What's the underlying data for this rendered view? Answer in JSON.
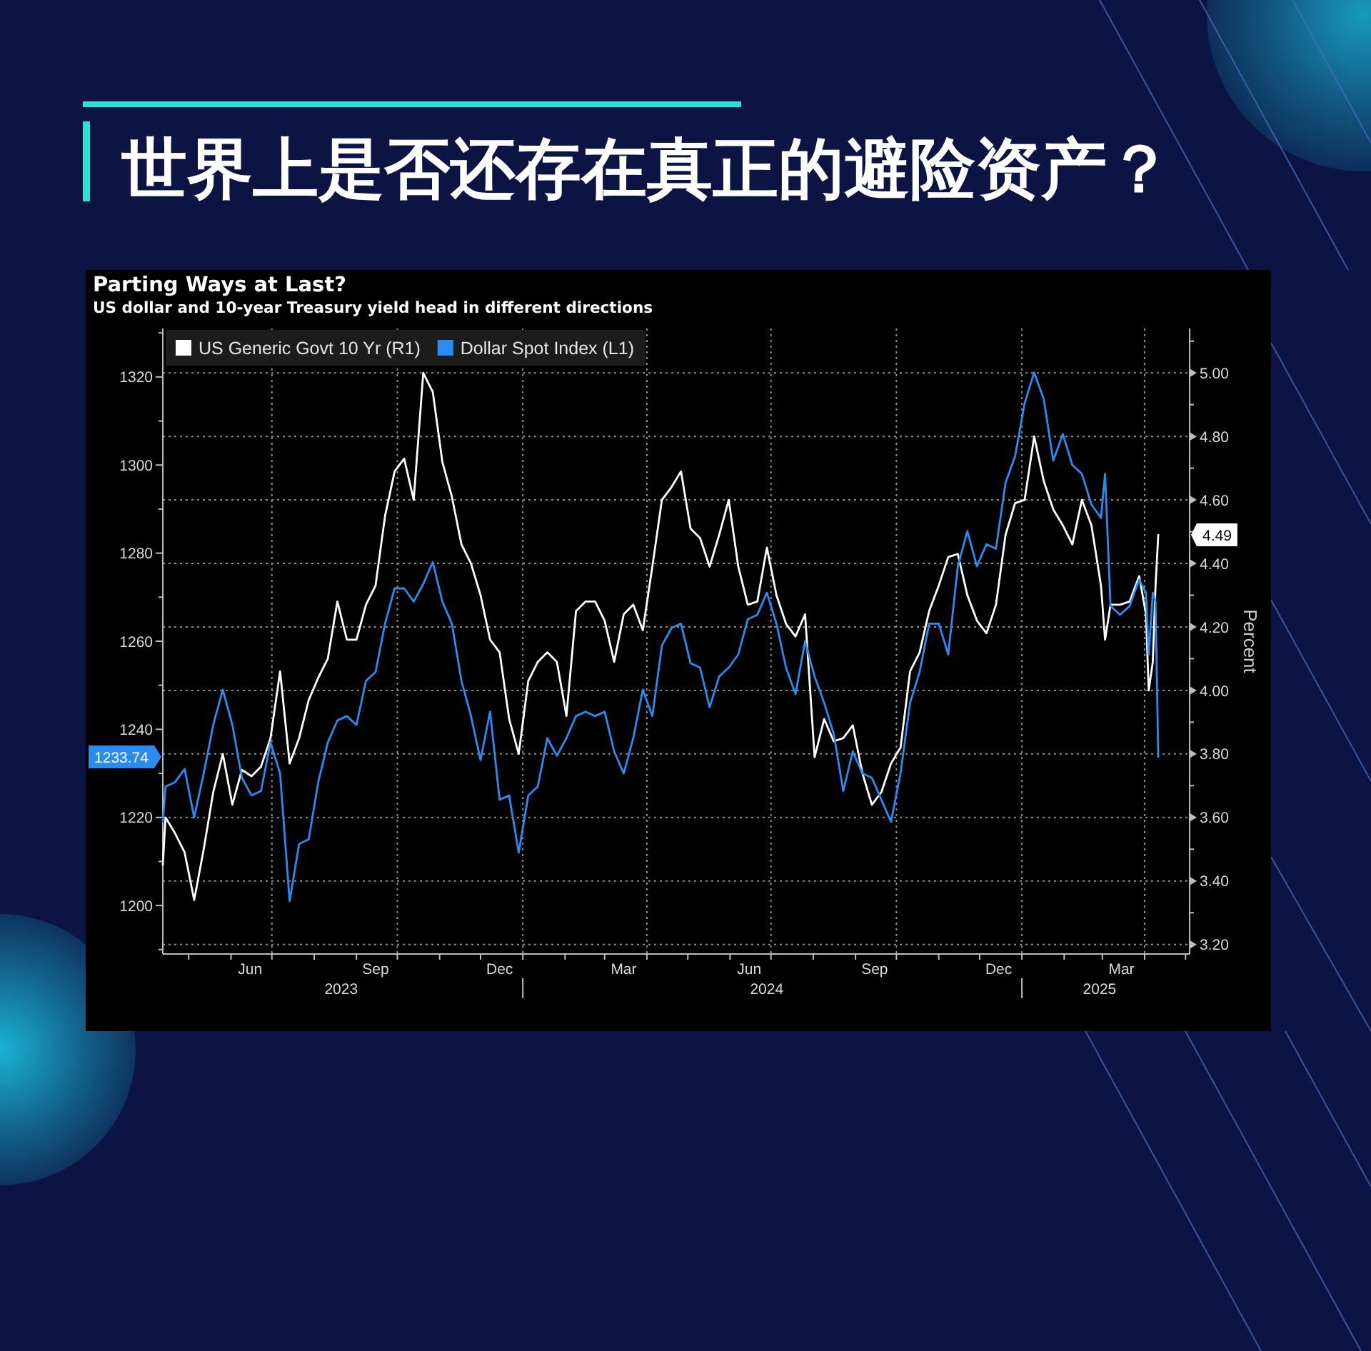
{
  "chart_data": {
    "type": "line",
    "title": "Parting Ways at Last?",
    "subtitle": "US dollar and 10-year Treasury yield head in different directions",
    "annotations": [
      "世界上是否还存在真正的避险资产？"
    ],
    "y2label": "Percent",
    "x": [
      "2023-04-12",
      "2023-04-14",
      "2023-04-21",
      "2023-04-28",
      "2023-05-05",
      "2023-05-12",
      "2023-05-19",
      "2023-05-26",
      "2023-06-02",
      "2023-06-09",
      "2023-06-16",
      "2023-06-23",
      "2023-06-30",
      "2023-07-07",
      "2023-07-14",
      "2023-07-21",
      "2023-07-28",
      "2023-08-04",
      "2023-08-11",
      "2023-08-18",
      "2023-08-25",
      "2023-09-01",
      "2023-09-08",
      "2023-09-15",
      "2023-09-22",
      "2023-09-29",
      "2023-10-06",
      "2023-10-13",
      "2023-10-20",
      "2023-10-27",
      "2023-11-03",
      "2023-11-10",
      "2023-11-17",
      "2023-11-24",
      "2023-12-01",
      "2023-12-08",
      "2023-12-15",
      "2023-12-22",
      "2023-12-29",
      "2024-01-05",
      "2024-01-12",
      "2024-01-19",
      "2024-01-26",
      "2024-02-02",
      "2024-02-09",
      "2024-02-16",
      "2024-02-23",
      "2024-03-01",
      "2024-03-08",
      "2024-03-15",
      "2024-03-22",
      "2024-03-29",
      "2024-04-05",
      "2024-04-12",
      "2024-04-19",
      "2024-04-26",
      "2024-05-03",
      "2024-05-10",
      "2024-05-17",
      "2024-05-24",
      "2024-05-31",
      "2024-06-07",
      "2024-06-14",
      "2024-06-21",
      "2024-06-28",
      "2024-07-05",
      "2024-07-12",
      "2024-07-19",
      "2024-07-26",
      "2024-08-02",
      "2024-08-09",
      "2024-08-16",
      "2024-08-23",
      "2024-08-30",
      "2024-09-06",
      "2024-09-13",
      "2024-09-20",
      "2024-09-27",
      "2024-10-04",
      "2024-10-11",
      "2024-10-18",
      "2024-10-25",
      "2024-11-01",
      "2024-11-08",
      "2024-11-15",
      "2024-11-22",
      "2024-11-29",
      "2024-12-06",
      "2024-12-13",
      "2024-12-20",
      "2024-12-27",
      "2025-01-03",
      "2025-01-10",
      "2025-01-17",
      "2025-01-24",
      "2025-01-31",
      "2025-02-07",
      "2025-02-14",
      "2025-02-21",
      "2025-02-28",
      "2025-03-03",
      "2025-03-07",
      "2025-03-14",
      "2025-03-21",
      "2025-03-28",
      "2025-04-02",
      "2025-04-04",
      "2025-04-07",
      "2025-04-09",
      "2025-04-11"
    ],
    "series": [
      {
        "name": "US Generic Govt 10 Yr (R1)",
        "color": "#ffffff",
        "axis": "y2",
        "values": [
          3.45,
          3.6,
          3.55,
          3.49,
          3.34,
          3.5,
          3.68,
          3.8,
          3.64,
          3.75,
          3.73,
          3.76,
          3.85,
          4.06,
          3.77,
          3.85,
          3.97,
          4.04,
          4.1,
          4.28,
          4.16,
          4.16,
          4.27,
          4.33,
          4.55,
          4.69,
          4.73,
          4.6,
          5.0,
          4.94,
          4.72,
          4.61,
          4.46,
          4.4,
          4.3,
          4.16,
          4.12,
          3.91,
          3.8,
          4.03,
          4.09,
          4.12,
          4.09,
          3.92,
          4.25,
          4.28,
          4.28,
          4.22,
          4.09,
          4.24,
          4.27,
          4.19,
          4.39,
          4.6,
          4.64,
          4.69,
          4.51,
          4.48,
          4.39,
          4.49,
          4.6,
          4.39,
          4.27,
          4.28,
          4.45,
          4.3,
          4.21,
          4.17,
          4.24,
          3.79,
          3.91,
          3.84,
          3.85,
          3.89,
          3.74,
          3.64,
          3.68,
          3.77,
          3.82,
          4.06,
          4.12,
          4.25,
          4.33,
          4.42,
          4.43,
          4.3,
          4.22,
          4.18,
          4.27,
          4.49,
          4.59,
          4.6,
          4.8,
          4.66,
          4.57,
          4.52,
          4.46,
          4.6,
          4.52,
          4.33,
          4.16,
          4.27,
          4.27,
          4.28,
          4.36,
          4.24,
          4.0,
          4.09,
          4.33,
          4.49
        ]
      },
      {
        "name": "Dollar Spot Index (L1)",
        "color": "#2a8cf0",
        "values": [
          1219,
          1227,
          1228,
          1231,
          1220,
          1230,
          1241,
          1249,
          1241,
          1229,
          1225,
          1226,
          1237,
          1230,
          1201,
          1214,
          1215,
          1228,
          1237,
          1242,
          1243,
          1241,
          1251,
          1253,
          1264,
          1272,
          1272,
          1269,
          1273,
          1278,
          1269,
          1264,
          1251,
          1243,
          1233,
          1244,
          1224,
          1225,
          1212,
          1225,
          1227,
          1238,
          1234,
          1238,
          1243,
          1244,
          1243,
          1244,
          1235,
          1230,
          1238,
          1249,
          1243,
          1259,
          1263,
          1264,
          1255,
          1254,
          1245,
          1252,
          1254,
          1257,
          1265,
          1266,
          1271,
          1264,
          1254,
          1248,
          1260,
          1252,
          1246,
          1239,
          1226,
          1235,
          1230,
          1229,
          1224,
          1219,
          1230,
          1246,
          1253,
          1264,
          1264,
          1257,
          1277,
          1285,
          1277,
          1282,
          1281,
          1296,
          1302,
          1314,
          1321,
          1315,
          1301,
          1307,
          1300,
          1298,
          1291,
          1288,
          1298,
          1268,
          1266,
          1268,
          1274,
          1271,
          1257,
          1271,
          1269,
          1233.74
        ]
      }
    ],
    "xlim": [
      "2023-04-12",
      "2025-05-04"
    ],
    "xticks": [
      {
        "value": "2023-05-01",
        "label": null
      },
      {
        "value": "2023-06-01",
        "label": null
      },
      {
        "value": "2023-07-01",
        "label": null
      },
      {
        "value": "2023-08-01",
        "label": null
      },
      {
        "value": "2023-09-01",
        "label": null
      },
      {
        "value": "2023-10-01",
        "label": null
      },
      {
        "value": "2023-11-01",
        "label": null
      },
      {
        "value": "2023-12-01",
        "label": null
      },
      {
        "value": "2024-01-01",
        "label": null
      },
      {
        "value": "2024-02-01",
        "label": null
      },
      {
        "value": "2024-03-01",
        "label": null
      },
      {
        "value": "2024-04-01",
        "label": null
      },
      {
        "value": "2024-05-01",
        "label": null
      },
      {
        "value": "2024-06-01",
        "label": null
      },
      {
        "value": "2024-07-01",
        "label": null
      },
      {
        "value": "2024-08-01",
        "label": null
      },
      {
        "value": "2024-09-01",
        "label": null
      },
      {
        "value": "2024-10-01",
        "label": null
      },
      {
        "value": "2024-11-01",
        "label": null
      },
      {
        "value": "2024-12-01",
        "label": null
      },
      {
        "value": "2025-01-01",
        "label": null
      },
      {
        "value": "2025-02-01",
        "label": null
      },
      {
        "value": "2025-03-01",
        "label": null
      },
      {
        "value": "2025-04-01",
        "label": null
      },
      {
        "value": "2025-05-01",
        "label": null
      },
      {
        "value": "2023-06-15",
        "label": "Jun"
      },
      {
        "value": "2023-09-15",
        "label": "Sep"
      },
      {
        "value": "2023-12-15",
        "label": "Dec"
      },
      {
        "value": "2024-03-15",
        "label": "Mar"
      },
      {
        "value": "2024-06-15",
        "label": "Jun"
      },
      {
        "value": "2024-09-15",
        "label": "Sep"
      },
      {
        "value": "2024-12-15",
        "label": "Dec"
      },
      {
        "value": "2025-03-15",
        "label": "Mar"
      }
    ],
    "x2lim": [
      "2023-04-07",
      "2025-05-04"
    ],
    "x2ticks": [
      {
        "value": "2023-08-21",
        "label": "2023"
      },
      {
        "value": "2024-06-28",
        "label": "2024"
      },
      {
        "value": "2025-02-27",
        "label": "2025"
      }
    ],
    "ylim": [
      1189,
      1331
    ],
    "yticks": [
      {
        "value": 1190,
        "label": null
      },
      1200,
      {
        "value": 1210,
        "label": null
      },
      1220,
      {
        "value": 1230,
        "label": null
      },
      1240,
      {
        "value": 1250,
        "label": null
      },
      1260,
      {
        "value": 1270,
        "label": null
      },
      1280,
      {
        "value": 1290,
        "label": null
      },
      1300,
      {
        "value": 1310,
        "label": null
      },
      1320,
      {
        "value": 1330,
        "label": null
      },
      {
        "value": 1233.74,
        "label": "1233.74"
      }
    ],
    "y2lim": [
      3.17,
      5.14
    ],
    "y2ticks": [
      {
        "value": 3.2,
        "label": "3.20"
      },
      {
        "value": 3.3,
        "label": null
      },
      {
        "value": 3.4,
        "label": "3.40"
      },
      {
        "value": 3.5,
        "label": null
      },
      {
        "value": 3.6,
        "label": "3.60"
      },
      {
        "value": 3.7,
        "label": null
      },
      {
        "value": 3.8,
        "label": "3.80"
      },
      {
        "value": 3.9,
        "label": null
      },
      {
        "value": 4.0,
        "label": "4.00"
      },
      {
        "value": 4.1,
        "label": null
      },
      {
        "value": 4.2,
        "label": "4.20"
      },
      {
        "value": 4.3,
        "label": null
      },
      {
        "value": 4.4,
        "label": "4.40"
      },
      {
        "value": 4.5,
        "label": null
      },
      {
        "value": 4.6,
        "label": "4.60"
      },
      {
        "value": 4.7,
        "label": null
      },
      {
        "value": 4.8,
        "label": "4.80"
      },
      {
        "value": 4.9,
        "label": null
      },
      {
        "value": 5.0,
        "label": "5.00"
      },
      {
        "value": 5.1,
        "label": null
      },
      {
        "value": 4.49,
        "label": "4.49"
      }
    ],
    "grid": true,
    "legend": "top left"
  }
}
